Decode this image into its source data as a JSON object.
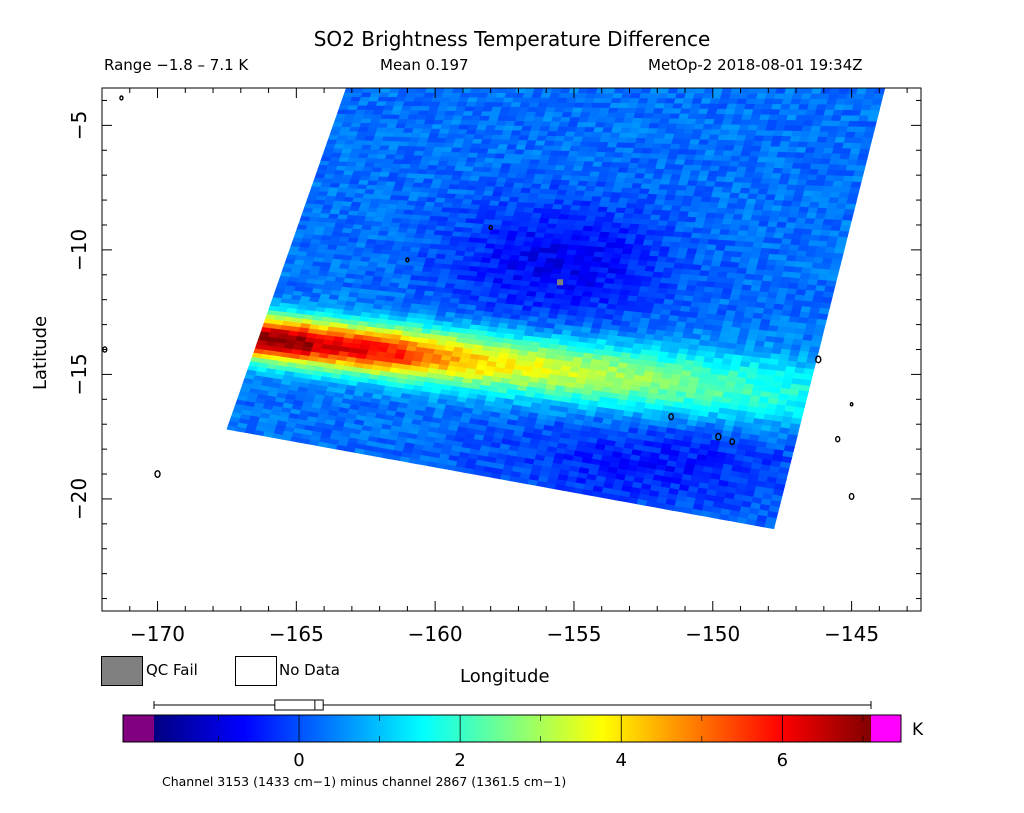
{
  "header": {
    "title": "SO2 Brightness Temperature Difference",
    "range": "Range −1.8 – 7.1 K",
    "mean": "Mean 0.197",
    "satellite_time": "MetOp-2 2018-08-01 19:34Z"
  },
  "axes": {
    "xlabel": "Longitude",
    "ylabel": "Latitude",
    "x_ticks": [
      "-170",
      "-165",
      "-160",
      "-155",
      "-150",
      "-145"
    ],
    "y_ticks": [
      "-5",
      "-10",
      "-15",
      "-20"
    ]
  },
  "legend": {
    "qc_fail": "QC Fail",
    "no_data": "No Data",
    "qc_fail_color": "#808080",
    "no_data_color": "#ffffff"
  },
  "colorbar": {
    "unit": "K",
    "tick_labels": [
      "0",
      "2",
      "4",
      "6"
    ],
    "colors": [
      "#000080",
      "#0000ff",
      "#0080ff",
      "#00ffff",
      "#80ff80",
      "#ffff00",
      "#ff8000",
      "#ff0000",
      "#800000"
    ],
    "under_color": "#800080",
    "over_color": "#ff00ff"
  },
  "footnote": "Channel 3153 (1433 cm−1) minus channel 2867 (1361.5 cm−1)",
  "chart_data": {
    "type": "heatmap",
    "title": "SO2 Brightness Temperature Difference",
    "xlabel": "Longitude",
    "ylabel": "Latitude",
    "xlim": [
      -172,
      -142.5
    ],
    "ylim": [
      -24.5,
      -3.5
    ],
    "value_range_K": [
      -1.8,
      7.1
    ],
    "mean_K": 0.197,
    "colorbar_range_K": [
      -1.8,
      7.1
    ],
    "swath_corners_lonlat": [
      [
        -167.5,
        -17.2
      ],
      [
        -163.2,
        -3.5
      ],
      [
        -143.8,
        -3.5
      ],
      [
        -147.8,
        -21.2
      ]
    ],
    "features": [
      {
        "name": "SO2 plume",
        "lon_range": [
          -166.5,
          -157.5
        ],
        "lat_center": -13.5,
        "peak_value_K": 7.1
      },
      {
        "name": "plume tail",
        "lon_range": [
          -157.5,
          -145.8
        ],
        "lat_center": -15.2,
        "value_K": 2.0
      },
      {
        "name": "QC fail pixel",
        "lon": -155.5,
        "lat": -11.3
      }
    ]
  }
}
